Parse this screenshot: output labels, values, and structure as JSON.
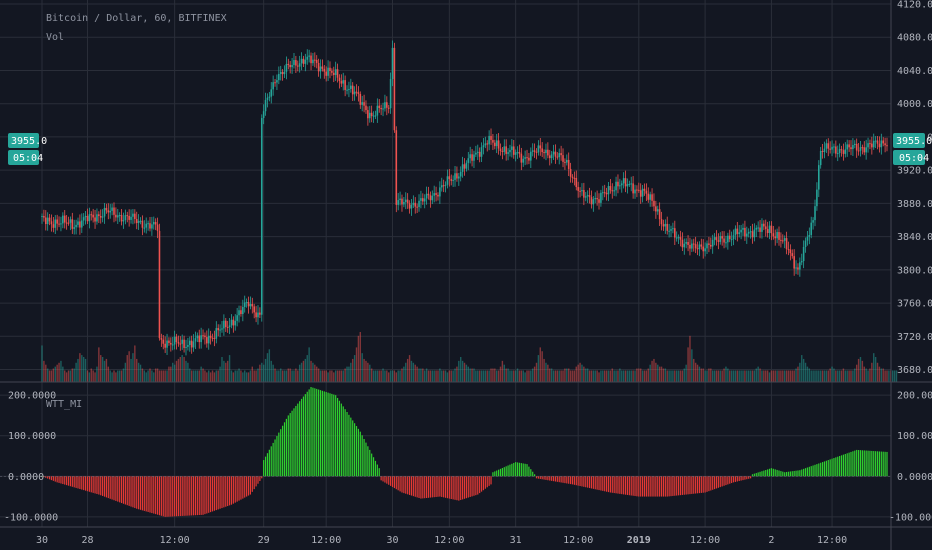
{
  "chart_data": [
    {
      "type": "candlestick",
      "title": "Bitcoin / Dollar, 60, BITFINEX",
      "volume_label": "Vol",
      "ylim": [
        3665,
        4120
      ],
      "y_ticks": [
        "4120.0",
        "4080.0",
        "4040.0",
        "4000.0",
        "3960.0",
        "3920.0",
        "3880.0",
        "3840.0",
        "3800.0",
        "3760.0",
        "3720.0",
        "3680.0"
      ],
      "last_price": "3955.0",
      "countdown": "05:04",
      "colors": {
        "up": "#26a69a",
        "down": "#ef5350",
        "grid": "#2a2e39",
        "background": "#131722",
        "tag": "#26a69a"
      },
      "anchors": [
        {
          "x": 0,
          "y": 3860
        },
        {
          "x": 18,
          "y": 3855
        },
        {
          "x": 35,
          "y": 3870
        },
        {
          "x": 50,
          "y": 3860
        },
        {
          "x": 62,
          "y": 3850
        },
        {
          "x": 63,
          "y": 3715
        },
        {
          "x": 75,
          "y": 3710
        },
        {
          "x": 90,
          "y": 3720
        },
        {
          "x": 100,
          "y": 3735
        },
        {
          "x": 110,
          "y": 3760
        },
        {
          "x": 116,
          "y": 3745
        },
        {
          "x": 117,
          "y": 3985
        },
        {
          "x": 125,
          "y": 4035
        },
        {
          "x": 140,
          "y": 4055
        },
        {
          "x": 155,
          "y": 4035
        },
        {
          "x": 165,
          "y": 4015
        },
        {
          "x": 175,
          "y": 3985
        },
        {
          "x": 184,
          "y": 4000
        },
        {
          "x": 186,
          "y": 4065
        },
        {
          "x": 188,
          "y": 3880
        },
        {
          "x": 200,
          "y": 3880
        },
        {
          "x": 210,
          "y": 3895
        },
        {
          "x": 220,
          "y": 3915
        },
        {
          "x": 236,
          "y": 3955
        },
        {
          "x": 255,
          "y": 3935
        },
        {
          "x": 265,
          "y": 3945
        },
        {
          "x": 278,
          "y": 3930
        },
        {
          "x": 285,
          "y": 3890
        },
        {
          "x": 295,
          "y": 3885
        },
        {
          "x": 305,
          "y": 3905
        },
        {
          "x": 318,
          "y": 3895
        },
        {
          "x": 325,
          "y": 3875
        },
        {
          "x": 330,
          "y": 3850
        },
        {
          "x": 345,
          "y": 3825
        },
        {
          "x": 358,
          "y": 3835
        },
        {
          "x": 370,
          "y": 3845
        },
        {
          "x": 385,
          "y": 3850
        },
        {
          "x": 395,
          "y": 3825
        },
        {
          "x": 400,
          "y": 3800
        },
        {
          "x": 408,
          "y": 3860
        },
        {
          "x": 412,
          "y": 3945
        },
        {
          "x": 425,
          "y": 3945
        },
        {
          "x": 440,
          "y": 3950
        },
        {
          "x": 446,
          "y": 3955
        }
      ],
      "volume": [
        38,
        22,
        18,
        14,
        12,
        12,
        14,
        16,
        18,
        20,
        22,
        16,
        12,
        10,
        12,
        12,
        14,
        14,
        20,
        24,
        30,
        28,
        26,
        24,
        12,
        10,
        14,
        12,
        10,
        16,
        36,
        28,
        26,
        22,
        24,
        16,
        12,
        10,
        12,
        10,
        12,
        12,
        12,
        14,
        20,
        28,
        32,
        24,
        30,
        38,
        24,
        20,
        18,
        14,
        12,
        10,
        12,
        14,
        12,
        10,
        14,
        14,
        12,
        12,
        12,
        12,
        12,
        16,
        16,
        20,
        18,
        22,
        24,
        26,
        28,
        26,
        22,
        20,
        14,
        12,
        12,
        12,
        12,
        12,
        16,
        14,
        12,
        10,
        12,
        10,
        12,
        10,
        12,
        12,
        16,
        26,
        22,
        20,
        22,
        28,
        12,
        10,
        12,
        12,
        14,
        12,
        10,
        12,
        10,
        10,
        12,
        16,
        12,
        12,
        14,
        18,
        20,
        18,
        24,
        30,
        34,
        22,
        18,
        14,
        12,
        12,
        14,
        12,
        12,
        12,
        14,
        14,
        12,
        12,
        14,
        12,
        18,
        20,
        22,
        24,
        28,
        36,
        22,
        20,
        18,
        16,
        14,
        12,
        12,
        12,
        12,
        10,
        12,
        12,
        10,
        12,
        12,
        12,
        12,
        12,
        14,
        16,
        16,
        20,
        24,
        28,
        36,
        48,
        52,
        30,
        24,
        22,
        20,
        18,
        14,
        12,
        12,
        12,
        12,
        12,
        14,
        12,
        12,
        10,
        12,
        12,
        12,
        10,
        12,
        12,
        14,
        16,
        20,
        24,
        28,
        22,
        20,
        18,
        16,
        14,
        14,
        14,
        12,
        14,
        12,
        12,
        12,
        12,
        12,
        12,
        14,
        12,
        12,
        12,
        10,
        12,
        12,
        12,
        14,
        16,
        22,
        26,
        22,
        20,
        18,
        16,
        14,
        14,
        14,
        12,
        12,
        12,
        12,
        12,
        12,
        12,
        12,
        14,
        14,
        14,
        12,
        12,
        16,
        22,
        18,
        14,
        14,
        12,
        12,
        12,
        12,
        14,
        12,
        12,
        12,
        10,
        12,
        12,
        12,
        14,
        16,
        20,
        28,
        36,
        32,
        24,
        20,
        18,
        14,
        14,
        12,
        12,
        12,
        12,
        12,
        12,
        14,
        14,
        14,
        12,
        12,
        12,
        16,
        18,
        20,
        18,
        16,
        14,
        14,
        12,
        12,
        12,
        12,
        12,
        10,
        12,
        12,
        12,
        12,
        12,
        12,
        14,
        12,
        12,
        12,
        14,
        12,
        12,
        12,
        12,
        12,
        12,
        12,
        12,
        14,
        14,
        14,
        12,
        12,
        12,
        14,
        18,
        22,
        24,
        20,
        18,
        16,
        16,
        14,
        14,
        12,
        12,
        12,
        12,
        12,
        12,
        12,
        12,
        12,
        14,
        18,
        36,
        48,
        34,
        24,
        20,
        18,
        16,
        14,
        14,
        12,
        12,
        14,
        14,
        12,
        12,
        12,
        12,
        12,
        12,
        14,
        16,
        14,
        12,
        12,
        12,
        12,
        12,
        12,
        12,
        12,
        12,
        12,
        12,
        12,
        12,
        12,
        14,
        16,
        14,
        12,
        12,
        12,
        12,
        10,
        12,
        12,
        12,
        12,
        12,
        12,
        12,
        12,
        12,
        12,
        12,
        12,
        12,
        14,
        16,
        20,
        28,
        24,
        20,
        16,
        14,
        12,
        12,
        12,
        12,
        12,
        12,
        12,
        12,
        12,
        12,
        14,
        16,
        14,
        12,
        12,
        12,
        12,
        14,
        12,
        12,
        12,
        12,
        12,
        14,
        18,
        24,
        26,
        22,
        16,
        14,
        12,
        14,
        20,
        30,
        26,
        20,
        16,
        14,
        14,
        12,
        12,
        12,
        12,
        12,
        12,
        12
      ]
    },
    {
      "type": "bar",
      "title": "WTT_MI",
      "ylim": [
        -125,
        225
      ],
      "y_ticks": [
        "200.0000",
        "100.0000",
        "0.0000",
        "-100.0000"
      ],
      "colors": {
        "positive": "#2fd12f",
        "negative": "#e53935"
      },
      "anchors": [
        {
          "x": 0,
          "y": 0
        },
        {
          "x": 8,
          "y": -15
        },
        {
          "x": 30,
          "y": -45
        },
        {
          "x": 50,
          "y": -80
        },
        {
          "x": 65,
          "y": -100
        },
        {
          "x": 85,
          "y": -95
        },
        {
          "x": 100,
          "y": -70
        },
        {
          "x": 110,
          "y": -45
        },
        {
          "x": 116,
          "y": -5
        },
        {
          "x": 117,
          "y": 40
        },
        {
          "x": 130,
          "y": 150
        },
        {
          "x": 142,
          "y": 220
        },
        {
          "x": 155,
          "y": 200
        },
        {
          "x": 168,
          "y": 110
        },
        {
          "x": 178,
          "y": 20
        },
        {
          "x": 179,
          "y": -10
        },
        {
          "x": 190,
          "y": -40
        },
        {
          "x": 200,
          "y": -55
        },
        {
          "x": 210,
          "y": -50
        },
        {
          "x": 220,
          "y": -60
        },
        {
          "x": 230,
          "y": -45
        },
        {
          "x": 237,
          "y": -20
        },
        {
          "x": 238,
          "y": 10
        },
        {
          "x": 250,
          "y": 35
        },
        {
          "x": 256,
          "y": 30
        },
        {
          "x": 260,
          "y": 5
        },
        {
          "x": 261,
          "y": -5
        },
        {
          "x": 280,
          "y": -20
        },
        {
          "x": 300,
          "y": -40
        },
        {
          "x": 315,
          "y": -50
        },
        {
          "x": 330,
          "y": -50
        },
        {
          "x": 350,
          "y": -40
        },
        {
          "x": 365,
          "y": -15
        },
        {
          "x": 374,
          "y": -5
        },
        {
          "x": 375,
          "y": 5
        },
        {
          "x": 385,
          "y": 20
        },
        {
          "x": 392,
          "y": 10
        },
        {
          "x": 400,
          "y": 15
        },
        {
          "x": 415,
          "y": 40
        },
        {
          "x": 430,
          "y": 65
        },
        {
          "x": 446,
          "y": 60
        }
      ]
    }
  ],
  "x_axis": {
    "ticks": [
      {
        "label": "30",
        "bar": 0,
        "bold": false
      },
      {
        "label": "28",
        "bar": 24,
        "bold": false
      },
      {
        "label": "12:00",
        "bar": 70,
        "bold": false
      },
      {
        "label": "29",
        "bar": 117,
        "bold": false
      },
      {
        "label": "12:00",
        "bar": 150,
        "bold": false
      },
      {
        "label": "30",
        "bar": 185,
        "bold": false
      },
      {
        "label": "12:00",
        "bar": 215,
        "bold": false
      },
      {
        "label": "31",
        "bar": 250,
        "bold": false
      },
      {
        "label": "12:00",
        "bar": 283,
        "bold": false
      },
      {
        "label": "2019",
        "bar": 315,
        "bold": true
      },
      {
        "label": "12:00",
        "bar": 350,
        "bold": false
      },
      {
        "label": "2",
        "bar": 385,
        "bold": false
      },
      {
        "label": "12:00",
        "bar": 417,
        "bold": false
      }
    ]
  }
}
